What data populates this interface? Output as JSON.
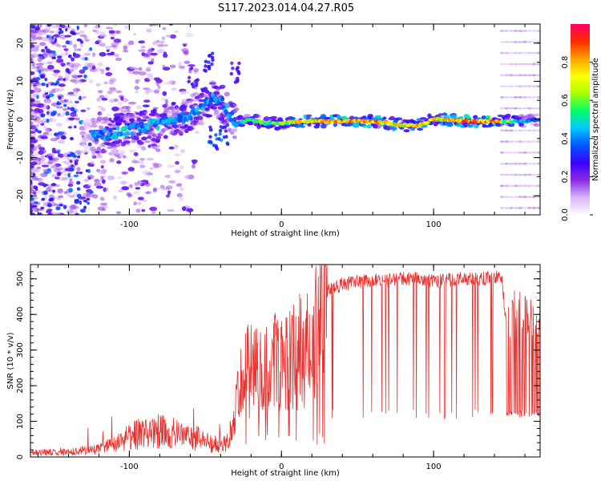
{
  "title": "S117.2023.014.04.27.R05",
  "chart_data": [
    {
      "type": "heatmap",
      "xlabel": "Height of straight line (km)",
      "ylabel": "Frequency (Hz)",
      "xlim": [
        -165,
        170
      ],
      "ylim": [
        -25,
        25
      ],
      "xticks": [
        -100,
        0,
        100
      ],
      "yticks": [
        -20,
        -10,
        0,
        10,
        20
      ],
      "colorbar": {
        "label": "Normalized spectral amplitude",
        "ticks": [
          0.0,
          0.2,
          0.4,
          0.6,
          0.8
        ],
        "range": [
          0,
          1
        ],
        "colormap": [
          "#ffffff",
          "#d8b4f8",
          "#8a2be2",
          "#3b00ff",
          "#0055ff",
          "#00c8ff",
          "#00ff66",
          "#a8ff00",
          "#ffff00",
          "#ffa000",
          "#ff2a00",
          "#ff0066"
        ]
      },
      "ridge": [
        {
          "x": -125,
          "y": -4.5,
          "a": 0.35
        },
        {
          "x": -115,
          "y": -4.0,
          "a": 0.4
        },
        {
          "x": -105,
          "y": -3.0,
          "a": 0.42
        },
        {
          "x": -95,
          "y": -2.5,
          "a": 0.4
        },
        {
          "x": -85,
          "y": -1.5,
          "a": 0.42
        },
        {
          "x": -75,
          "y": -0.5,
          "a": 0.4
        },
        {
          "x": -65,
          "y": 0.5,
          "a": 0.42
        },
        {
          "x": -55,
          "y": 2.5,
          "a": 0.42
        },
        {
          "x": -45,
          "y": 6.0,
          "a": 0.4
        },
        {
          "x": -38,
          "y": 4.0,
          "a": 0.4
        },
        {
          "x": -30,
          "y": -1.0,
          "a": 0.42
        },
        {
          "x": -20,
          "y": 0.0,
          "a": 0.55
        },
        {
          "x": -10,
          "y": -1.0,
          "a": 0.55
        },
        {
          "x": 0,
          "y": -1.0,
          "a": 0.6
        },
        {
          "x": 10,
          "y": -0.5,
          "a": 0.75
        },
        {
          "x": 20,
          "y": -0.5,
          "a": 0.7
        },
        {
          "x": 30,
          "y": -0.5,
          "a": 0.75
        },
        {
          "x": 40,
          "y": -0.5,
          "a": 0.8
        },
        {
          "x": 50,
          "y": -0.5,
          "a": 0.8
        },
        {
          "x": 60,
          "y": -0.5,
          "a": 0.78
        },
        {
          "x": 70,
          "y": -1.0,
          "a": 0.72
        },
        {
          "x": 80,
          "y": -1.5,
          "a": 0.7
        },
        {
          "x": 90,
          "y": -1.5,
          "a": 0.75
        },
        {
          "x": 100,
          "y": 0.0,
          "a": 0.7
        },
        {
          "x": 110,
          "y": 0.0,
          "a": 0.72
        },
        {
          "x": 120,
          "y": -0.5,
          "a": 0.85
        },
        {
          "x": 130,
          "y": -0.5,
          "a": 0.88
        },
        {
          "x": 140,
          "y": -0.5,
          "a": 0.82
        },
        {
          "x": 150,
          "y": -0.5,
          "a": 0.55
        },
        {
          "x": 160,
          "y": -0.5,
          "a": 0.4
        },
        {
          "x": 170,
          "y": 0.0,
          "a": 0.35
        }
      ],
      "branches": [
        {
          "x": -58,
          "y": 10.5,
          "a": 0.3
        },
        {
          "x": -48,
          "y": 15.5,
          "a": 0.3
        },
        {
          "x": -30,
          "y": 12.5,
          "a": 0.25
        },
        {
          "x": -45,
          "y": -5.0,
          "a": 0.35
        },
        {
          "x": -38,
          "y": -3.5,
          "a": 0.35
        }
      ]
    },
    {
      "type": "line",
      "xlabel": "Height of straight line (km)",
      "ylabel": "SNR (10 * v/v)",
      "xlim": [
        -165,
        170
      ],
      "ylim": [
        0,
        540
      ],
      "xticks": [
        -100,
        0,
        100
      ],
      "yticks": [
        0,
        100,
        200,
        300,
        400,
        500
      ],
      "color": "#e8302e",
      "series": [
        {
          "x": -165,
          "y": 12
        },
        {
          "x": -140,
          "y": 14
        },
        {
          "x": -120,
          "y": 22
        },
        {
          "x": -110,
          "y": 35
        },
        {
          "x": -100,
          "y": 55
        },
        {
          "x": -90,
          "y": 70
        },
        {
          "x": -80,
          "y": 75
        },
        {
          "x": -70,
          "y": 70
        },
        {
          "x": -60,
          "y": 60
        },
        {
          "x": -50,
          "y": 45
        },
        {
          "x": -45,
          "y": 35
        },
        {
          "x": -35,
          "y": 45
        },
        {
          "x": -30,
          "y": 150
        },
        {
          "x": -25,
          "y": 260
        },
        {
          "x": -20,
          "y": 270
        },
        {
          "x": -10,
          "y": 290
        },
        {
          "x": 0,
          "y": 300
        },
        {
          "x": 10,
          "y": 320
        },
        {
          "x": 15,
          "y": 340
        },
        {
          "x": 20,
          "y": 380
        },
        {
          "x": 25,
          "y": 430
        },
        {
          "x": 30,
          "y": 465
        },
        {
          "x": 40,
          "y": 485
        },
        {
          "x": 50,
          "y": 492
        },
        {
          "x": 60,
          "y": 498
        },
        {
          "x": 70,
          "y": 495
        },
        {
          "x": 80,
          "y": 500
        },
        {
          "x": 90,
          "y": 500
        },
        {
          "x": 100,
          "y": 492
        },
        {
          "x": 110,
          "y": 497
        },
        {
          "x": 120,
          "y": 500
        },
        {
          "x": 130,
          "y": 500
        },
        {
          "x": 140,
          "y": 503
        },
        {
          "x": 145,
          "y": 500
        },
        {
          "x": 150,
          "y": 260
        },
        {
          "x": 160,
          "y": 260
        },
        {
          "x": 170,
          "y": 260
        }
      ]
    }
  ]
}
